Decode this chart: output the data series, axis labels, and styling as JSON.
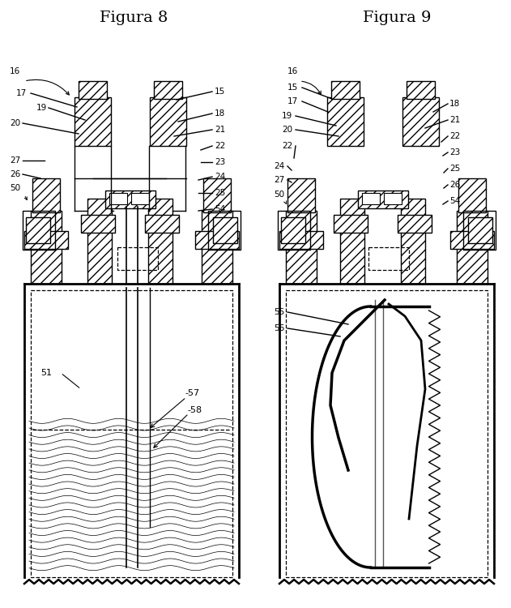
{
  "title_left": "Figura 8",
  "title_right": "Figura 9",
  "bg_color": "#ffffff",
  "figsize": [
    6.31,
    7.5
  ],
  "dpi": 100
}
